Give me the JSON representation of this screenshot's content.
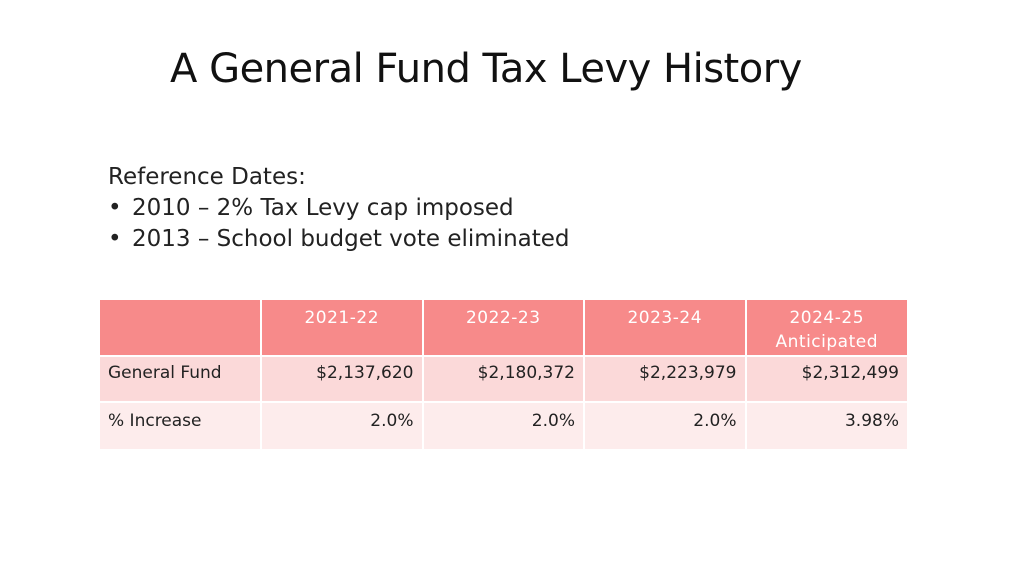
{
  "title": "A General Fund Tax Levy History",
  "reference": {
    "heading": "Reference Dates:",
    "bullet": "•",
    "items": [
      "2010 – 2% Tax Levy cap imposed",
      "2013 – School budget vote eliminated"
    ]
  },
  "table": {
    "header_color": "#f78a8a",
    "row_colors": [
      "#fbd9d9",
      "#fdecec"
    ],
    "columns": [
      {
        "label": "2021-22",
        "sub": ""
      },
      {
        "label": "2022-23",
        "sub": ""
      },
      {
        "label": "2023-24",
        "sub": ""
      },
      {
        "label": "2024-25",
        "sub": "Anticipated"
      }
    ],
    "rows": [
      {
        "label": "General Fund",
        "values": [
          "$2,137,620",
          "$2,180,372",
          "$2,223,979",
          "$2,312,499"
        ]
      },
      {
        "label": "% Increase",
        "values": [
          "2.0%",
          "2.0%",
          "2.0%",
          "3.98%"
        ]
      }
    ]
  }
}
